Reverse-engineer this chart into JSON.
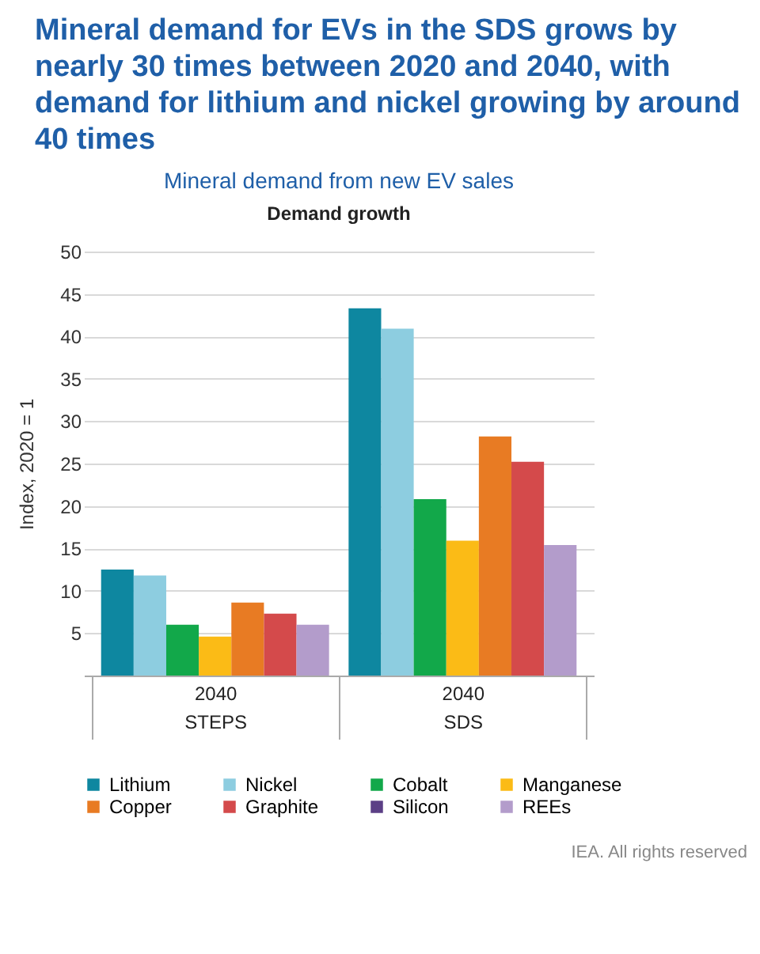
{
  "chart_data": {
    "type": "bar",
    "title": "Mineral demand for EVs in the SDS grows by nearly 30 times between 2020 and 2040, with demand for lithium and nickel growing by around 40 times",
    "subtitle": "Mineral demand from new EV sales",
    "ylabel": "Index, 2020 = 1",
    "annotations": [
      "Demand growth",
      "IEA. All rights reserved"
    ],
    "categories": [
      "2040\nSTEPS",
      "2040\nSDS"
    ],
    "series": [
      {
        "name": "Lithium",
        "color": "#0e87a0",
        "values": [
          12.5,
          43.3
        ]
      },
      {
        "name": "Nickel",
        "color": "#8dcde0",
        "values": [
          11.8,
          40.9
        ]
      },
      {
        "name": "Cobalt",
        "color": "#12a84a",
        "values": [
          6.0,
          20.8
        ]
      },
      {
        "name": "Manganese",
        "color": "#fbbb16",
        "values": [
          4.6,
          15.9
        ]
      },
      {
        "name": "Copper",
        "color": "#e87b23",
        "values": [
          8.6,
          28.2
        ]
      },
      {
        "name": "Graphite",
        "color": "#d44a4b",
        "values": [
          7.3,
          25.2
        ]
      },
      {
        "name": "Silicon",
        "color": "#5b3f86",
        "values": [
          null,
          null
        ]
      },
      {
        "name": "REEs",
        "color": "#b39ccb",
        "values": [
          6.0,
          15.4
        ]
      }
    ],
    "ylim": [
      0,
      50
    ],
    "yticks": [
      5,
      10,
      15,
      20,
      25,
      30,
      35,
      40,
      45,
      50
    ],
    "grid": "y",
    "legend": "bottom"
  }
}
